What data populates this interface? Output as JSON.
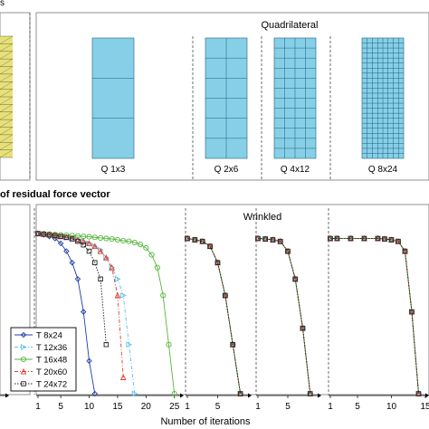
{
  "colors": {
    "mesh_fill": "#87cfe6",
    "mesh_line": "#1f5f80",
    "tri_fill": "#e6e07a",
    "tri_line": "#4a4a20",
    "background": "#ffffff",
    "series": [
      "#1f3fa8",
      "#54c3e8",
      "#54b53a",
      "#e23a2a",
      "#222222"
    ]
  },
  "top_panel": {
    "corner_label": "s",
    "title": "Quadrilateral",
    "meshes": [
      {
        "label": "Q 1x3",
        "cols": 1,
        "rows": 3
      },
      {
        "label": "Q 2x6",
        "cols": 2,
        "rows": 6
      },
      {
        "label": "Q 4x12",
        "cols": 4,
        "rows": 12
      },
      {
        "label": "Q 8x24",
        "cols": 8,
        "rows": 24
      }
    ]
  },
  "bottom_panel": {
    "heading": "of residual force vector",
    "title": "Wrinkled",
    "xlabel": "Number of iterations"
  },
  "chart_data": {
    "type": "line",
    "title": "Wrinkled",
    "xlabel": "Number of iterations",
    "ylabel": "",
    "y_scale": "log",
    "ylim": [
      1e-10,
      1
    ],
    "legend_placement": "bottom-left",
    "groups": [
      {
        "xlim": [
          1,
          26
        ],
        "x_ticks": [
          "1",
          "5",
          "10",
          "15",
          "20",
          "25"
        ],
        "series": [
          {
            "name": "T 8x24",
            "marker": "diamond",
            "line": "solid",
            "x": [
              1,
              2,
              3,
              4,
              5,
              6,
              7,
              8,
              9,
              10,
              11
            ],
            "y": [
              0.6,
              0.5,
              0.4,
              0.3,
              0.15,
              0.05,
              0.01,
              0.001,
              1e-05,
              1e-08,
              1e-10
            ]
          },
          {
            "name": "T 12x36",
            "marker": "triangle-right",
            "line": "dashdot",
            "x": [
              1,
              2,
              3,
              4,
              5,
              6,
              7,
              8,
              9,
              10,
              11,
              12,
              13,
              14,
              15,
              16,
              17,
              18
            ],
            "y": [
              0.6,
              0.55,
              0.5,
              0.45,
              0.4,
              0.35,
              0.3,
              0.25,
              0.2,
              0.15,
              0.1,
              0.06,
              0.02,
              0.005,
              0.001,
              0.0001,
              1e-07,
              1e-10
            ]
          },
          {
            "name": "T 16x48",
            "marker": "circle",
            "line": "solid",
            "x": [
              1,
              2,
              3,
              4,
              5,
              6,
              7,
              8,
              9,
              10,
              11,
              12,
              13,
              14,
              15,
              16,
              17,
              18,
              19,
              20,
              21,
              22,
              23,
              24,
              25
            ],
            "y": [
              0.6,
              0.58,
              0.55,
              0.52,
              0.5,
              0.48,
              0.45,
              0.42,
              0.4,
              0.38,
              0.35,
              0.32,
              0.3,
              0.28,
              0.25,
              0.22,
              0.2,
              0.17,
              0.13,
              0.08,
              0.03,
              0.005,
              0.0001,
              1e-07,
              1e-10
            ]
          },
          {
            "name": "T 20x60",
            "marker": "triangle-up",
            "line": "dashdot",
            "x": [
              1,
              2,
              3,
              4,
              5,
              6,
              7,
              8,
              9,
              10,
              11,
              12,
              13,
              14,
              15,
              16
            ],
            "y": [
              0.6,
              0.55,
              0.5,
              0.45,
              0.4,
              0.35,
              0.3,
              0.25,
              0.2,
              0.15,
              0.1,
              0.05,
              0.02,
              0.005,
              0.0001,
              1e-09
            ]
          },
          {
            "name": "T 24x72",
            "marker": "square",
            "line": "dotted",
            "x": [
              1,
              2,
              3,
              4,
              5,
              6,
              7,
              8,
              9,
              10,
              11,
              12,
              13
            ],
            "y": [
              0.6,
              0.55,
              0.5,
              0.45,
              0.4,
              0.35,
              0.28,
              0.2,
              0.12,
              0.05,
              0.01,
              0.001,
              1e-07
            ]
          }
        ]
      },
      {
        "xlim": [
          1,
          9
        ],
        "x_ticks": [
          "1",
          "5"
        ],
        "series": [
          {
            "name": "T 8x24",
            "x": [
              1,
              2,
              3,
              4,
              5,
              6,
              7,
              8
            ],
            "y": [
              0.3,
              0.25,
              0.2,
              0.1,
              0.01,
              0.0001,
              1e-07,
              1e-10
            ]
          },
          {
            "name": "T 12x36",
            "x": [
              1,
              2,
              3,
              4,
              5,
              6,
              7,
              8
            ],
            "y": [
              0.3,
              0.25,
              0.2,
              0.1,
              0.01,
              0.0001,
              1e-07,
              1e-10
            ]
          },
          {
            "name": "T 16x48",
            "x": [
              1,
              2,
              3,
              4,
              5,
              6,
              7,
              8
            ],
            "y": [
              0.3,
              0.25,
              0.2,
              0.1,
              0.01,
              0.0001,
              1e-07,
              1e-10
            ]
          },
          {
            "name": "T 20x60",
            "x": [
              1,
              2,
              3,
              4,
              5,
              6,
              7,
              8
            ],
            "y": [
              0.3,
              0.25,
              0.2,
              0.1,
              0.01,
              0.0001,
              1e-07,
              1e-10
            ]
          },
          {
            "name": "T 24x72",
            "x": [
              1,
              2,
              3,
              4,
              5,
              6,
              7,
              8
            ],
            "y": [
              0.3,
              0.25,
              0.2,
              0.1,
              0.01,
              0.0001,
              1e-07,
              1e-10
            ]
          }
        ]
      },
      {
        "xlim": [
          1,
          9
        ],
        "x_ticks": [
          "1",
          "5"
        ],
        "series": [
          {
            "name": "T 8x24",
            "x": [
              1,
              2,
              3,
              4,
              5,
              6,
              7,
              8
            ],
            "y": [
              0.3,
              0.28,
              0.25,
              0.2,
              0.05,
              0.001,
              1e-06,
              1e-10
            ]
          },
          {
            "name": "T 12x36",
            "x": [
              1,
              2,
              3,
              4,
              5,
              6,
              7,
              8
            ],
            "y": [
              0.3,
              0.28,
              0.25,
              0.2,
              0.05,
              0.001,
              1e-06,
              1e-10
            ]
          },
          {
            "name": "T 16x48",
            "x": [
              1,
              2,
              3,
              4,
              5,
              6,
              7,
              8
            ],
            "y": [
              0.3,
              0.28,
              0.25,
              0.2,
              0.05,
              0.001,
              1e-06,
              1e-10
            ]
          },
          {
            "name": "T 20x60",
            "x": [
              1,
              2,
              3,
              4,
              5,
              6,
              7,
              8
            ],
            "y": [
              0.3,
              0.28,
              0.25,
              0.2,
              0.05,
              0.001,
              1e-06,
              1e-10
            ]
          },
          {
            "name": "T 24x72",
            "x": [
              1,
              2,
              3,
              4,
              5,
              6,
              7,
              8
            ],
            "y": [
              0.3,
              0.28,
              0.25,
              0.2,
              0.05,
              0.001,
              1e-06,
              1e-10
            ]
          }
        ]
      },
      {
        "xlim": [
          1,
          15
        ],
        "x_ticks": [
          "1",
          "5",
          "10",
          "15"
        ],
        "series": [
          {
            "name": "T 8x24",
            "x": [
              1,
              2,
              4,
              6,
              8,
              9,
              10,
              11,
              12,
              13,
              14
            ],
            "y": [
              0.3,
              0.3,
              0.3,
              0.3,
              0.3,
              0.28,
              0.25,
              0.2,
              0.05,
              1e-05,
              1e-10
            ]
          },
          {
            "name": "T 12x36",
            "x": [
              1,
              2,
              4,
              6,
              8,
              9,
              10,
              11,
              12,
              13,
              14
            ],
            "y": [
              0.3,
              0.3,
              0.3,
              0.3,
              0.3,
              0.28,
              0.25,
              0.2,
              0.05,
              1e-05,
              1e-10
            ]
          },
          {
            "name": "T 16x48",
            "x": [
              1,
              2,
              4,
              6,
              8,
              9,
              10,
              11,
              12,
              13,
              14
            ],
            "y": [
              0.3,
              0.3,
              0.3,
              0.3,
              0.3,
              0.28,
              0.25,
              0.2,
              0.05,
              1e-05,
              1e-10
            ]
          },
          {
            "name": "T 20x60",
            "x": [
              1,
              2,
              4,
              6,
              8,
              9,
              10,
              11,
              12,
              13,
              14
            ],
            "y": [
              0.3,
              0.3,
              0.3,
              0.3,
              0.3,
              0.28,
              0.25,
              0.2,
              0.05,
              1e-05,
              1e-10
            ]
          },
          {
            "name": "T 24x72",
            "x": [
              1,
              2,
              4,
              6,
              8,
              9,
              10,
              11,
              12,
              13,
              14
            ],
            "y": [
              0.3,
              0.3,
              0.3,
              0.3,
              0.3,
              0.28,
              0.25,
              0.2,
              0.05,
              1e-05,
              1e-10
            ]
          }
        ]
      }
    ]
  }
}
